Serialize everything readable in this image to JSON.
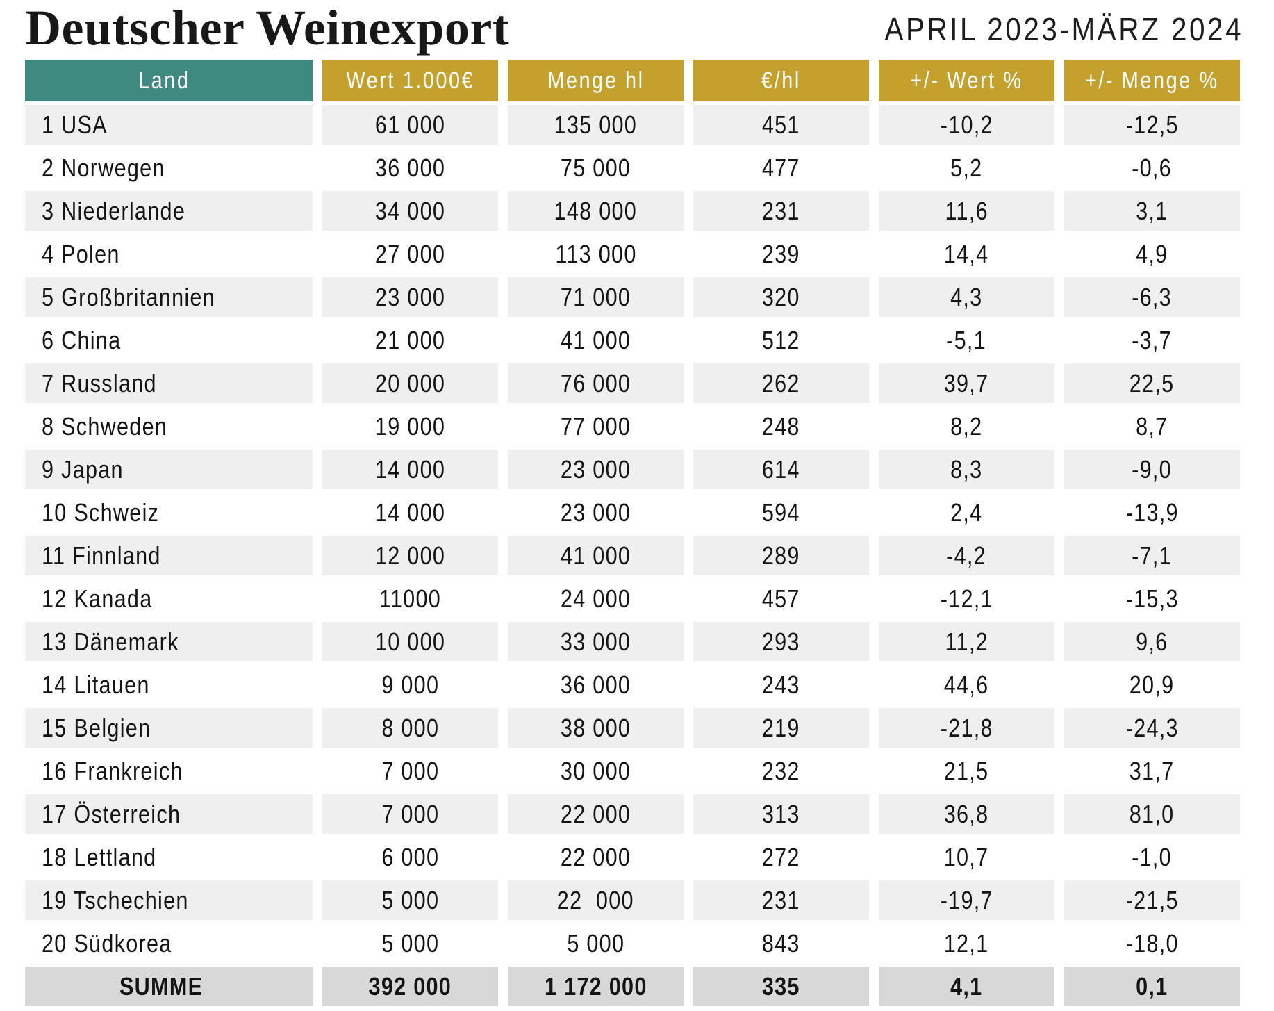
{
  "header": {
    "title": "Deutscher Weinexport",
    "period": "APRIL 2023-MÄRZ 2024"
  },
  "chart_data": {
    "type": "table",
    "title": "Deutscher Weinexport",
    "subtitle": "APRIL 2023-MÄRZ 2024",
    "columns": [
      "Land",
      "Wert 1.000€",
      "Menge hl",
      "€/hl",
      "+/- Wert %",
      "+/- Menge %"
    ],
    "rows": [
      {
        "rank": "1",
        "land": "USA",
        "wert": "61 000",
        "menge": "135 000",
        "eur_hl": "451",
        "wert_pct": "-10,2",
        "menge_pct": "-12,5"
      },
      {
        "rank": "2",
        "land": "Norwegen",
        "wert": "36 000",
        "menge": "75 000",
        "eur_hl": "477",
        "wert_pct": "5,2",
        "menge_pct": "-0,6"
      },
      {
        "rank": "3",
        "land": "Niederlande",
        "wert": "34 000",
        "menge": "148 000",
        "eur_hl": "231",
        "wert_pct": "11,6",
        "menge_pct": "3,1"
      },
      {
        "rank": "4",
        "land": "Polen",
        "wert": "27 000",
        "menge": "113 000",
        "eur_hl": "239",
        "wert_pct": "14,4",
        "menge_pct": "4,9"
      },
      {
        "rank": "5",
        "land": "Großbritannien",
        "wert": "23 000",
        "menge": "71 000",
        "eur_hl": "320",
        "wert_pct": "4,3",
        "menge_pct": "-6,3"
      },
      {
        "rank": "6",
        "land": "China",
        "wert": "21 000",
        "menge": "41 000",
        "eur_hl": "512",
        "wert_pct": "-5,1",
        "menge_pct": "-3,7"
      },
      {
        "rank": "7",
        "land": "Russland",
        "wert": "20 000",
        "menge": "76 000",
        "eur_hl": "262",
        "wert_pct": "39,7",
        "menge_pct": "22,5"
      },
      {
        "rank": "8",
        "land": "Schweden",
        "wert": "19 000",
        "menge": "77 000",
        "eur_hl": "248",
        "wert_pct": "8,2",
        "menge_pct": "8,7"
      },
      {
        "rank": "9",
        "land": "Japan",
        "wert": "14 000",
        "menge": "23 000",
        "eur_hl": "614",
        "wert_pct": "8,3",
        "menge_pct": "-9,0"
      },
      {
        "rank": "10",
        "land": "Schweiz",
        "wert": "14 000",
        "menge": "23 000",
        "eur_hl": "594",
        "wert_pct": "2,4",
        "menge_pct": "-13,9"
      },
      {
        "rank": "11",
        "land": "Finnland",
        "wert": "12 000",
        "menge": "41 000",
        "eur_hl": "289",
        "wert_pct": "-4,2",
        "menge_pct": "-7,1"
      },
      {
        "rank": "12",
        "land": "Kanada",
        "wert": "11000",
        "menge": "24 000",
        "eur_hl": "457",
        "wert_pct": "-12,1",
        "menge_pct": "-15,3"
      },
      {
        "rank": "13",
        "land": "Dänemark",
        "wert": "10 000",
        "menge": "33 000",
        "eur_hl": "293",
        "wert_pct": "11,2",
        "menge_pct": "9,6"
      },
      {
        "rank": "14",
        "land": "Litauen",
        "wert": "9 000",
        "menge": "36 000",
        "eur_hl": "243",
        "wert_pct": "44,6",
        "menge_pct": "20,9"
      },
      {
        "rank": "15",
        "land": "Belgien",
        "wert": "8 000",
        "menge": "38 000",
        "eur_hl": "219",
        "wert_pct": "-21,8",
        "menge_pct": "-24,3"
      },
      {
        "rank": "16",
        "land": "Frankreich",
        "wert": "7 000",
        "menge": "30 000",
        "eur_hl": "232",
        "wert_pct": "21,5",
        "menge_pct": "31,7"
      },
      {
        "rank": "17",
        "land": "Österreich",
        "wert": "7 000",
        "menge": "22 000",
        "eur_hl": "313",
        "wert_pct": "36,8",
        "menge_pct": "81,0"
      },
      {
        "rank": "18",
        "land": "Lettland",
        "wert": "6 000",
        "menge": "22 000",
        "eur_hl": "272",
        "wert_pct": "10,7",
        "menge_pct": "-1,0"
      },
      {
        "rank": "19",
        "land": "Tschechien",
        "wert": "5 000",
        "menge": "22  000",
        "eur_hl": "231",
        "wert_pct": "-19,7",
        "menge_pct": "-21,5"
      },
      {
        "rank": "20",
        "land": "Südkorea",
        "wert": "5 000",
        "menge": "5 000",
        "eur_hl": "843",
        "wert_pct": "12,1",
        "menge_pct": "-18,0"
      }
    ],
    "summary": {
      "label": "SUMME",
      "wert": "392 000",
      "menge": "1 172 000",
      "eur_hl": "335",
      "wert_pct": "4,1",
      "menge_pct": "0,1"
    },
    "layout_hints": {
      "striped_rows": true,
      "stripe_on": "odd",
      "grid": false
    }
  },
  "colors": {
    "teal": "#3E8A81",
    "gold": "#C3A12C",
    "row-bg": "#EFEFEF",
    "summary-bg": "#D8D8D8",
    "header-text": "#FFFFFF",
    "text": "#141414"
  }
}
